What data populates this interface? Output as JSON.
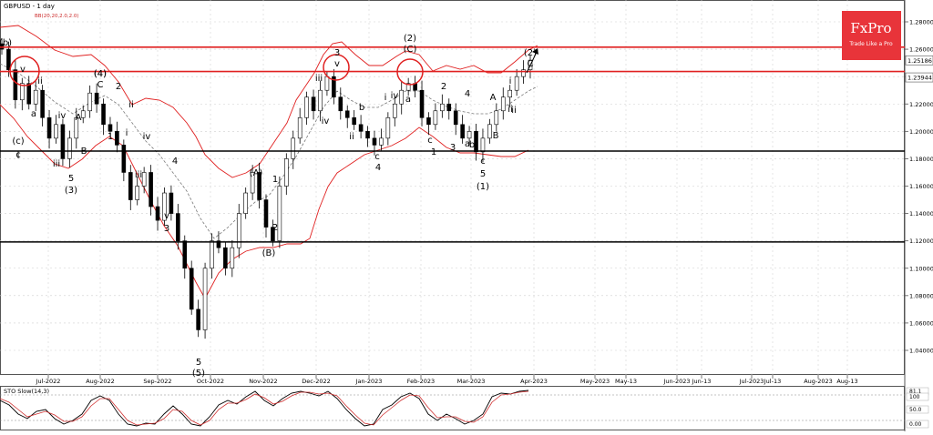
{
  "title": "GBPUSD - 1 day",
  "indicator_label": "BB(20,20,2.0,2.0)",
  "brand": {
    "name": "FxPro",
    "tagline": "Trade Like a Pro",
    "color": "#e8343a"
  },
  "stochastic": {
    "label": "STO Slow(14,3)",
    "ticks": [
      "81.1",
      "100",
      "50.0",
      "0.00"
    ]
  },
  "chart_data": {
    "type": "candlestick",
    "x_tick_labels": [
      "Jul-2022",
      "Aug-2022",
      "Sep-2022",
      "Oct-2022",
      "Nov-2022",
      "Dec-2022",
      "Jan-2023",
      "Feb-2023",
      "Mar-2023",
      "Apr-2023",
      "May-2023",
      "May-13",
      "Jun-2023",
      "Jun-13",
      "Jul-2023",
      "Jul-13",
      "Aug-2023",
      "Aug-13"
    ],
    "y_tick_labels": [
      "1.28000",
      "1.26000",
      "1.24000",
      "1.22000",
      "1.20000",
      "1.18000",
      "1.16000",
      "1.14000",
      "1.12000",
      "1.10000",
      "1.08000",
      "1.06000",
      "1.04000"
    ],
    "ylim": [
      1.02,
      1.3
    ],
    "price_tags": [
      {
        "label": "1.25186",
        "value": 1.2519
      },
      {
        "label": "1.23944",
        "value": 1.2394
      }
    ],
    "red_levels": [
      1.2615,
      1.2437
    ],
    "black_levels": [
      1.1856,
      1.1192
    ],
    "close_series": [
      1.26,
      1.245,
      1.223,
      1.235,
      1.22,
      1.23,
      1.21,
      1.195,
      1.205,
      1.18,
      1.195,
      1.21,
      1.215,
      1.228,
      1.22,
      1.205,
      1.2,
      1.19,
      1.17,
      1.15,
      1.16,
      1.17,
      1.145,
      1.135,
      1.155,
      1.14,
      1.12,
      1.1,
      1.07,
      1.055,
      1.1,
      1.12,
      1.115,
      1.1,
      1.115,
      1.14,
      1.155,
      1.17,
      1.15,
      1.13,
      1.12,
      1.16,
      1.18,
      1.195,
      1.21,
      1.225,
      1.215,
      1.23,
      1.24,
      1.225,
      1.215,
      1.21,
      1.205,
      1.2,
      1.195,
      1.19,
      1.195,
      1.21,
      1.22,
      1.23,
      1.235,
      1.23,
      1.21,
      1.205,
      1.215,
      1.22,
      1.215,
      1.205,
      1.195,
      1.2,
      1.185,
      1.195,
      1.205,
      1.215,
      1.225,
      1.23,
      1.24,
      1.245,
      1.252
    ]
  },
  "wave_labels": [
    "(b)",
    "(c)",
    "c",
    "v",
    "a",
    "iv",
    "iii",
    "i",
    "ii",
    "A",
    "B",
    "C",
    "(4)",
    "5",
    "(3)",
    "(4)",
    "2",
    "1",
    "ii",
    "i",
    "iii",
    "iv",
    "v",
    "3",
    "4",
    "5",
    "(5)",
    "(A)",
    "(B)",
    "1",
    "2",
    "iii",
    "iv",
    "v",
    "3",
    "(C)",
    "(2)",
    "a",
    "b",
    "c",
    "4",
    "ii",
    "i",
    "iv",
    "2",
    "1",
    "3",
    "5",
    "(1)",
    "a",
    "b",
    "c",
    "4",
    "c",
    "A",
    "B",
    "C",
    "(2)",
    "i",
    "ii",
    "ii"
  ]
}
